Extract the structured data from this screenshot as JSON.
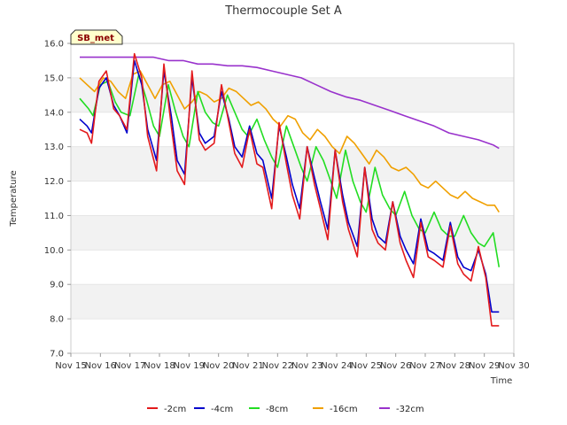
{
  "chart_data": {
    "type": "line",
    "title": "Thermocouple Set A",
    "xlabel": "Time",
    "ylabel": "Temperature",
    "badge": "SB_met",
    "x_ticks": [
      "Nov 15",
      "Nov 16",
      "Nov 17",
      "Nov 18",
      "Nov 19",
      "Nov 20",
      "Nov 21",
      "Nov 22",
      "Nov 23",
      "Nov 24",
      "Nov 25",
      "Nov 26",
      "Nov 27",
      "Nov 28",
      "Nov 29",
      "Nov 30"
    ],
    "xlim": [
      0,
      15
    ],
    "ylim": [
      7.0,
      16.0
    ],
    "y_ticks": [
      "7.0",
      "8.0",
      "9.0",
      "10.0",
      "11.0",
      "12.0",
      "13.0",
      "14.0",
      "15.0",
      "16.0"
    ],
    "grid": true,
    "legend_position": "bottom",
    "series": [
      {
        "name": "-2cm",
        "color": "#e31a1c",
        "x_days": [
          0.3,
          0.55,
          0.7,
          0.95,
          1.2,
          1.45,
          1.65,
          1.9,
          2.15,
          2.4,
          2.6,
          2.9,
          3.15,
          3.4,
          3.6,
          3.85,
          4.1,
          4.35,
          4.55,
          4.85,
          5.1,
          5.35,
          5.55,
          5.8,
          6.05,
          6.3,
          6.5,
          6.8,
          7.05,
          7.3,
          7.5,
          7.75,
          8.0,
          8.25,
          8.45,
          8.7,
          8.95,
          9.2,
          9.4,
          9.7,
          9.95,
          10.2,
          10.4,
          10.65,
          10.9,
          11.15,
          11.35,
          11.6,
          11.85,
          12.1,
          12.3,
          12.6,
          12.85,
          13.1,
          13.3,
          13.55,
          13.8,
          14.05,
          14.25,
          14.5
        ],
        "values": [
          13.5,
          13.4,
          13.1,
          14.9,
          15.2,
          14.1,
          13.9,
          13.5,
          15.7,
          15.0,
          13.3,
          12.3,
          15.4,
          13.6,
          12.3,
          11.9,
          15.2,
          13.2,
          12.9,
          13.1,
          14.8,
          13.7,
          12.8,
          12.4,
          13.5,
          12.5,
          12.4,
          11.2,
          13.7,
          12.5,
          11.6,
          10.9,
          13.0,
          11.9,
          11.2,
          10.3,
          12.9,
          11.4,
          10.6,
          9.8,
          12.4,
          10.6,
          10.2,
          10.0,
          11.4,
          10.2,
          9.7,
          9.2,
          10.8,
          9.8,
          9.7,
          9.5,
          10.7,
          9.6,
          9.3,
          9.1,
          10.1,
          9.2,
          7.8,
          7.8
        ]
      },
      {
        "name": "-4cm",
        "color": "#0000cc",
        "x_days": [
          0.3,
          0.55,
          0.7,
          0.95,
          1.2,
          1.45,
          1.65,
          1.9,
          2.15,
          2.4,
          2.6,
          2.9,
          3.15,
          3.4,
          3.6,
          3.85,
          4.1,
          4.35,
          4.55,
          4.85,
          5.1,
          5.35,
          5.55,
          5.8,
          6.05,
          6.3,
          6.5,
          6.8,
          7.05,
          7.3,
          7.5,
          7.75,
          8.0,
          8.25,
          8.45,
          8.7,
          8.95,
          9.2,
          9.4,
          9.7,
          9.95,
          10.2,
          10.4,
          10.65,
          10.9,
          11.15,
          11.35,
          11.6,
          11.85,
          12.1,
          12.3,
          12.6,
          12.85,
          13.1,
          13.3,
          13.55,
          13.8,
          14.05,
          14.25,
          14.5
        ],
        "values": [
          13.8,
          13.6,
          13.4,
          14.7,
          15.0,
          14.2,
          13.9,
          13.4,
          15.5,
          14.8,
          13.5,
          12.6,
          15.2,
          13.9,
          12.6,
          12.2,
          15.0,
          13.4,
          13.1,
          13.3,
          14.6,
          13.8,
          13.0,
          12.7,
          13.6,
          12.8,
          12.6,
          11.5,
          13.6,
          12.7,
          11.9,
          11.2,
          13.0,
          12.1,
          11.4,
          10.6,
          12.9,
          11.6,
          10.8,
          10.1,
          12.4,
          10.9,
          10.4,
          10.2,
          11.4,
          10.4,
          10.0,
          9.6,
          10.9,
          10.0,
          9.9,
          9.7,
          10.8,
          9.8,
          9.5,
          9.4,
          10.0,
          9.3,
          8.2,
          8.2
        ]
      },
      {
        "name": "-8cm",
        "color": "#22dd22",
        "x_days": [
          0.3,
          0.6,
          0.75,
          1.0,
          1.25,
          1.5,
          1.7,
          2.0,
          2.3,
          2.55,
          2.8,
          3.0,
          3.3,
          3.55,
          3.8,
          4.0,
          4.3,
          4.55,
          4.8,
          5.0,
          5.3,
          5.55,
          5.8,
          6.0,
          6.3,
          6.55,
          6.8,
          7.0,
          7.3,
          7.55,
          7.8,
          8.0,
          8.3,
          8.55,
          8.8,
          9.0,
          9.3,
          9.55,
          9.8,
          10.0,
          10.3,
          10.55,
          10.8,
          11.0,
          11.3,
          11.55,
          11.8,
          12.0,
          12.3,
          12.55,
          12.8,
          13.0,
          13.3,
          13.55,
          13.8,
          14.0,
          14.3,
          14.5
        ],
        "values": [
          14.4,
          14.1,
          13.9,
          14.8,
          14.9,
          14.3,
          14.0,
          13.9,
          15.1,
          14.4,
          13.6,
          13.3,
          14.8,
          14.0,
          13.3,
          13.0,
          14.6,
          14.0,
          13.7,
          13.6,
          14.5,
          14.0,
          13.5,
          13.3,
          13.8,
          13.2,
          12.7,
          12.4,
          13.6,
          13.0,
          12.4,
          12.0,
          13.0,
          12.6,
          12.0,
          11.5,
          12.9,
          12.0,
          11.4,
          11.1,
          12.4,
          11.6,
          11.2,
          11.0,
          11.7,
          11.0,
          10.6,
          10.5,
          11.1,
          10.6,
          10.4,
          10.4,
          11.0,
          10.5,
          10.2,
          10.1,
          10.5,
          9.5
        ]
      },
      {
        "name": "-16cm",
        "color": "#f0a000",
        "x_days": [
          0.3,
          0.55,
          0.8,
          1.1,
          1.35,
          1.6,
          1.85,
          2.1,
          2.35,
          2.6,
          2.85,
          3.1,
          3.35,
          3.6,
          3.85,
          4.1,
          4.35,
          4.6,
          4.85,
          5.1,
          5.35,
          5.6,
          5.85,
          6.1,
          6.35,
          6.6,
          6.85,
          7.1,
          7.35,
          7.6,
          7.85,
          8.1,
          8.35,
          8.6,
          8.85,
          9.1,
          9.35,
          9.6,
          9.85,
          10.1,
          10.35,
          10.6,
          10.85,
          11.1,
          11.35,
          11.6,
          11.85,
          12.1,
          12.35,
          12.6,
          12.85,
          13.1,
          13.35,
          13.6,
          13.85,
          14.1,
          14.35,
          14.5
        ],
        "values": [
          15.0,
          14.8,
          14.6,
          15.0,
          14.9,
          14.6,
          14.4,
          15.1,
          15.2,
          14.8,
          14.4,
          14.8,
          14.9,
          14.5,
          14.1,
          14.3,
          14.6,
          14.5,
          14.3,
          14.4,
          14.7,
          14.6,
          14.4,
          14.2,
          14.3,
          14.1,
          13.8,
          13.6,
          13.9,
          13.8,
          13.4,
          13.2,
          13.5,
          13.3,
          13.0,
          12.8,
          13.3,
          13.1,
          12.8,
          12.5,
          12.9,
          12.7,
          12.4,
          12.3,
          12.4,
          12.2,
          11.9,
          11.8,
          12.0,
          11.8,
          11.6,
          11.5,
          11.7,
          11.5,
          11.4,
          11.3,
          11.3,
          11.1
        ]
      },
      {
        "name": "-32cm",
        "color": "#9932cc",
        "x_days": [
          0.3,
          0.8,
          1.3,
          1.8,
          2.3,
          2.8,
          3.3,
          3.8,
          4.3,
          4.8,
          5.3,
          5.8,
          6.3,
          6.8,
          7.3,
          7.8,
          8.3,
          8.8,
          9.3,
          9.8,
          10.3,
          10.8,
          11.3,
          11.8,
          12.3,
          12.8,
          13.3,
          13.8,
          14.3,
          14.5
        ],
        "values": [
          15.6,
          15.6,
          15.6,
          15.6,
          15.6,
          15.6,
          15.5,
          15.5,
          15.4,
          15.4,
          15.35,
          15.35,
          15.3,
          15.2,
          15.1,
          15.0,
          14.8,
          14.6,
          14.45,
          14.35,
          14.2,
          14.05,
          13.9,
          13.75,
          13.6,
          13.4,
          13.3,
          13.2,
          13.05,
          12.95
        ]
      }
    ]
  }
}
